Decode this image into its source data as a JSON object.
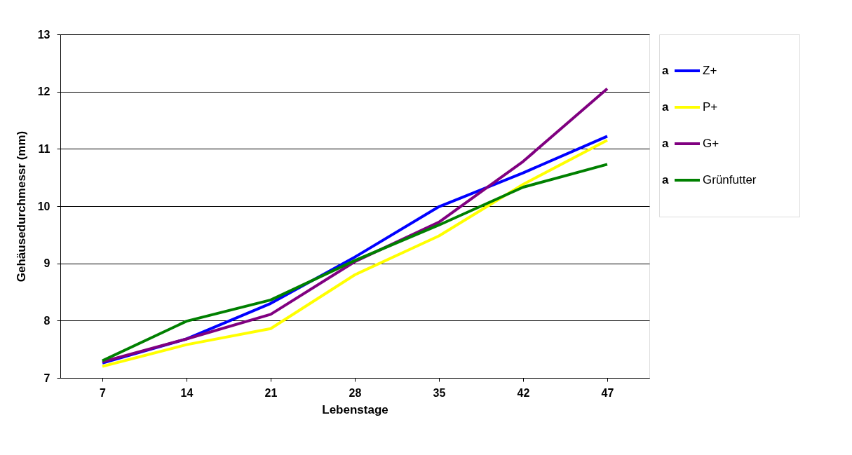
{
  "chart_data": {
    "type": "line",
    "xlabel": "Lebenstage",
    "ylabel": "Gehäusedurchmessr (mm)",
    "categories": [
      "7",
      "14",
      "21",
      "28",
      "35",
      "42",
      "47"
    ],
    "series": [
      {
        "name": "Z+",
        "color": "#0000ff",
        "values": [
          7.26,
          7.68,
          8.3,
          9.11,
          9.99,
          10.58,
          11.22
        ]
      },
      {
        "name": "P+",
        "color": "#ffff00",
        "values": [
          7.2,
          7.58,
          7.86,
          8.8,
          9.48,
          10.38,
          11.15
        ]
      },
      {
        "name": "G+",
        "color": "#800080",
        "values": [
          7.28,
          7.68,
          8.11,
          9.03,
          9.72,
          10.78,
          12.05
        ]
      },
      {
        "name": "Grünfutter",
        "color": "#008000",
        "values": [
          7.3,
          7.99,
          8.36,
          9.05,
          9.67,
          10.33,
          10.73
        ]
      }
    ],
    "annotations": [
      "a",
      "a",
      "a",
      "a"
    ],
    "ylim": [
      7,
      13
    ],
    "yticks": [
      7,
      8,
      9,
      10,
      11,
      12,
      13
    ],
    "grid": "y",
    "legend": "right",
    "marker": "none",
    "line_style": "solid"
  }
}
